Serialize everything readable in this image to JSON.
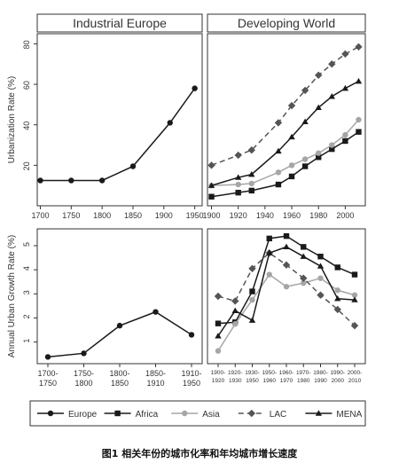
{
  "chart_data": [
    {
      "type": "line",
      "panel": "top-left",
      "title": "Industrial Europe",
      "ylabel": "Urbanization Rate (%)",
      "ylim": [
        0,
        85
      ],
      "yticks": [
        20,
        40,
        60,
        80
      ],
      "xlim": [
        1695,
        1962
      ],
      "xticks": [
        1700,
        1750,
        1800,
        1850,
        1900,
        1950
      ],
      "grid": false,
      "series": [
        {
          "name": "Europe",
          "marker": "circle",
          "dash": "solid",
          "x": [
            1700,
            1750,
            1800,
            1850,
            1910,
            1950
          ],
          "y": [
            12.5,
            12.5,
            12.5,
            19.5,
            41,
            58
          ]
        }
      ]
    },
    {
      "type": "line",
      "panel": "top-right",
      "title": "Developing World",
      "ylim": [
        0,
        85
      ],
      "xlim": [
        1897,
        2015
      ],
      "xticks": [
        1900,
        1920,
        1940,
        1960,
        1980,
        2000
      ],
      "grid": false,
      "series": [
        {
          "name": "Africa",
          "marker": "square",
          "dash": "solid",
          "x": [
            1900,
            1920,
            1930,
            1950,
            1960,
            1970,
            1980,
            1990,
            2000,
            2010
          ],
          "y": [
            4.5,
            6.5,
            7.5,
            10.5,
            14.5,
            19.5,
            24,
            28,
            32,
            36.5
          ]
        },
        {
          "name": "Asia",
          "marker": "circle",
          "dash": "solid",
          "light": true,
          "x": [
            1900,
            1920,
            1930,
            1950,
            1960,
            1970,
            1980,
            1990,
            2000,
            2010
          ],
          "y": [
            10,
            10.5,
            11,
            16.5,
            20,
            23,
            26,
            30,
            35,
            42.5
          ]
        },
        {
          "name": "LAC",
          "marker": "diamond",
          "dash": "dashed",
          "x": [
            1900,
            1920,
            1930,
            1950,
            1960,
            1970,
            1980,
            1990,
            2000,
            2010
          ],
          "y": [
            20,
            25,
            27.5,
            41,
            49.5,
            57,
            64.5,
            70,
            75,
            78.5
          ]
        },
        {
          "name": "MENA",
          "marker": "triangle",
          "dash": "solid",
          "x": [
            1900,
            1920,
            1930,
            1950,
            1960,
            1970,
            1980,
            1990,
            2000,
            2010
          ],
          "y": [
            10,
            14,
            15.5,
            27,
            34,
            41.5,
            48.5,
            54,
            58,
            61.5
          ]
        }
      ]
    },
    {
      "type": "line",
      "panel": "bottom-left",
      "ylabel": "Annual Urban Growth Rate (%)",
      "ylim": [
        0.1,
        5.7
      ],
      "yticks": [
        1,
        2,
        3,
        4,
        5
      ],
      "categories": [
        "1700-\n1750",
        "1750-\n1800",
        "1800-\n1850",
        "1850-\n1910",
        "1910-\n1950"
      ],
      "grid": false,
      "series": [
        {
          "name": "Europe",
          "marker": "circle",
          "dash": "solid",
          "values": [
            0.38,
            0.53,
            1.68,
            2.25,
            1.3
          ]
        }
      ]
    },
    {
      "type": "line",
      "panel": "bottom-right",
      "ylim": [
        0.1,
        5.7
      ],
      "categories": [
        "1900-\n1920",
        "1920-\n1930",
        "1930-\n1950",
        "1950-\n1960",
        "1960-\n1970",
        "1970-\n1980",
        "1980-\n1990",
        "1990-\n2000",
        "2000-\n2010"
      ],
      "grid": false,
      "series": [
        {
          "name": "Africa",
          "marker": "square",
          "dash": "solid",
          "values": [
            1.77,
            1.82,
            3.1,
            5.3,
            5.4,
            4.95,
            4.55,
            4.1,
            3.8
          ]
        },
        {
          "name": "Asia",
          "marker": "circle",
          "dash": "solid",
          "light": true,
          "values": [
            0.63,
            1.75,
            2.75,
            3.8,
            3.3,
            3.45,
            3.65,
            3.15,
            2.95
          ]
        },
        {
          "name": "LAC",
          "marker": "diamond",
          "dash": "dashed",
          "values": [
            2.9,
            2.7,
            4.05,
            4.7,
            4.2,
            3.65,
            2.95,
            2.35,
            1.68
          ]
        },
        {
          "name": "MENA",
          "marker": "triangle",
          "dash": "solid",
          "values": [
            1.25,
            2.3,
            1.9,
            4.7,
            4.95,
            4.55,
            4.15,
            2.8,
            2.75
          ]
        }
      ]
    }
  ],
  "legend": {
    "placement": "bottom",
    "items": [
      {
        "label": "Europe",
        "marker": "circle",
        "dash": "solid"
      },
      {
        "label": "Africa",
        "marker": "square",
        "dash": "solid"
      },
      {
        "label": "Asia",
        "marker": "circle",
        "dash": "solid",
        "light": true
      },
      {
        "label": "LAC",
        "marker": "diamond",
        "dash": "dashed"
      },
      {
        "label": "MENA",
        "marker": "triangle",
        "dash": "solid"
      }
    ]
  },
  "colors": {
    "dark": "#1a1a1a",
    "mid": "#555555",
    "light": "#a6a6a6",
    "axis": "#333333",
    "header_bg": "#ffffff"
  },
  "caption": "图1 相关年份的城市化率和年均城市增长速度"
}
